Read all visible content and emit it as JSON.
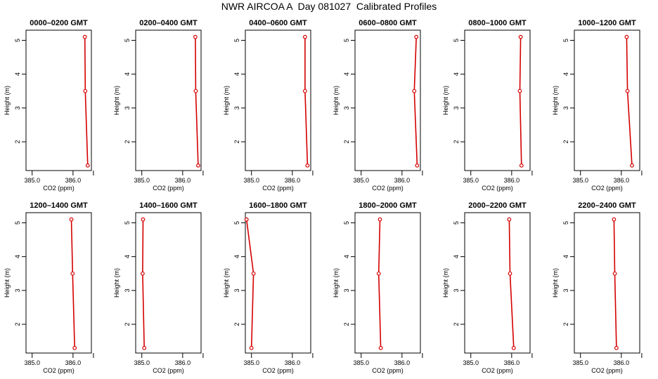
{
  "title": "NWR AIRCOA A  Day 081027  Calibrated Profiles",
  "colors": {
    "line": "#d40000",
    "axis": "#000000"
  },
  "chart_data": [
    {
      "type": "line",
      "title": "0000–0200 GMT",
      "xlabel": "CO2 (ppm)",
      "ylabel": "Height (m)",
      "xlim": [
        384.85,
        386.45
      ],
      "ylim": [
        1.15,
        5.3
      ],
      "xticks": [
        385.0,
        386.0
      ],
      "xtick_labels": [
        "385.0",
        "386.0"
      ],
      "yticks": [
        2,
        3,
        4,
        5
      ],
      "ytick_labels": [
        "2",
        "3",
        "4",
        "5"
      ],
      "grid": false,
      "series": [
        {
          "x": [
            386.36,
            386.3,
            386.29
          ],
          "y": [
            1.3,
            3.5,
            5.1
          ]
        }
      ]
    },
    {
      "type": "line",
      "title": "0200–0400 GMT",
      "xlabel": "CO2 (ppm)",
      "ylabel": "Height (m)",
      "xlim": [
        384.85,
        386.45
      ],
      "ylim": [
        1.15,
        5.3
      ],
      "xticks": [
        385.0,
        386.0
      ],
      "xtick_labels": [
        "385.0",
        "386.0"
      ],
      "yticks": [
        2,
        3,
        4,
        5
      ],
      "ytick_labels": [
        "2",
        "3",
        "4",
        "5"
      ],
      "grid": false,
      "series": [
        {
          "x": [
            386.38,
            386.32,
            386.31
          ],
          "y": [
            1.3,
            3.5,
            5.1
          ]
        }
      ]
    },
    {
      "type": "line",
      "title": "0400–0600 GMT",
      "xlabel": "CO2 (ppm)",
      "ylabel": "Height (m)",
      "xlim": [
        384.85,
        386.45
      ],
      "ylim": [
        1.15,
        5.3
      ],
      "xticks": [
        385.0,
        386.0
      ],
      "xtick_labels": [
        "385.0",
        "386.0"
      ],
      "yticks": [
        2,
        3,
        4,
        5
      ],
      "ytick_labels": [
        "2",
        "3",
        "4",
        "5"
      ],
      "grid": false,
      "series": [
        {
          "x": [
            386.37,
            386.31,
            386.31
          ],
          "y": [
            1.3,
            3.5,
            5.1
          ]
        }
      ]
    },
    {
      "type": "line",
      "title": "0600–0800 GMT",
      "xlabel": "CO2 (ppm)",
      "ylabel": "Height (m)",
      "xlim": [
        384.85,
        386.45
      ],
      "ylim": [
        1.15,
        5.3
      ],
      "xticks": [
        385.0,
        386.0
      ],
      "xtick_labels": [
        "385.0",
        "386.0"
      ],
      "yticks": [
        2,
        3,
        4,
        5
      ],
      "ytick_labels": [
        "2",
        "3",
        "4",
        "5"
      ],
      "grid": false,
      "series": [
        {
          "x": [
            386.37,
            386.3,
            386.35
          ],
          "y": [
            1.3,
            3.5,
            5.1
          ]
        }
      ]
    },
    {
      "type": "line",
      "title": "0800–1000 GMT",
      "xlabel": "CO2 (ppm)",
      "ylabel": "Height (m)",
      "xlim": [
        384.85,
        386.45
      ],
      "ylim": [
        1.15,
        5.3
      ],
      "xticks": [
        385.0,
        386.0
      ],
      "xtick_labels": [
        "385.0",
        "386.0"
      ],
      "yticks": [
        2,
        3,
        4,
        5
      ],
      "ytick_labels": [
        "2",
        "3",
        "4",
        "5"
      ],
      "grid": false,
      "series": [
        {
          "x": [
            386.24,
            386.2,
            386.22
          ],
          "y": [
            1.3,
            3.5,
            5.1
          ]
        }
      ]
    },
    {
      "type": "line",
      "title": "1000–1200 GMT",
      "xlabel": "CO2 (ppm)",
      "ylabel": "Height (m)",
      "xlim": [
        384.85,
        386.45
      ],
      "ylim": [
        1.15,
        5.3
      ],
      "xticks": [
        385.0,
        386.0
      ],
      "xtick_labels": [
        "385.0",
        "386.0"
      ],
      "yticks": [
        2,
        3,
        4,
        5
      ],
      "ytick_labels": [
        "2",
        "3",
        "4",
        "5"
      ],
      "grid": false,
      "series": [
        {
          "x": [
            386.26,
            386.15,
            386.13
          ],
          "y": [
            1.3,
            3.5,
            5.1
          ]
        }
      ]
    },
    {
      "type": "line",
      "title": "1200–1400 GMT",
      "xlabel": "CO2 (ppm)",
      "ylabel": "Height (m)",
      "xlim": [
        384.85,
        386.45
      ],
      "ylim": [
        1.15,
        5.3
      ],
      "xticks": [
        385.0,
        386.0
      ],
      "xtick_labels": [
        "385.0",
        "386.0"
      ],
      "yticks": [
        2,
        3,
        4,
        5
      ],
      "ytick_labels": [
        "2",
        "3",
        "4",
        "5"
      ],
      "grid": false,
      "series": [
        {
          "x": [
            386.04,
            385.99,
            385.96
          ],
          "y": [
            1.3,
            3.5,
            5.1
          ]
        }
      ]
    },
    {
      "type": "line",
      "title": "1400–1600 GMT",
      "xlabel": "CO2 (ppm)",
      "ylabel": "Height (m)",
      "xlim": [
        384.85,
        386.45
      ],
      "ylim": [
        1.15,
        5.3
      ],
      "xticks": [
        385.0,
        386.0
      ],
      "xtick_labels": [
        "385.0",
        "386.0"
      ],
      "yticks": [
        2,
        3,
        4,
        5
      ],
      "ytick_labels": [
        "2",
        "3",
        "4",
        "5"
      ],
      "grid": false,
      "series": [
        {
          "x": [
            385.06,
            385.02,
            385.03
          ],
          "y": [
            1.3,
            3.5,
            5.1
          ]
        }
      ]
    },
    {
      "type": "line",
      "title": "1600–1800 GMT",
      "xlabel": "CO2 (ppm)",
      "ylabel": "Height (m)",
      "xlim": [
        384.85,
        386.45
      ],
      "ylim": [
        1.15,
        5.3
      ],
      "xticks": [
        385.0,
        386.0
      ],
      "xtick_labels": [
        "385.0",
        "386.0"
      ],
      "yticks": [
        2,
        3,
        4,
        5
      ],
      "ytick_labels": [
        "2",
        "3",
        "4",
        "5"
      ],
      "grid": false,
      "series": [
        {
          "x": [
            385.0,
            385.05,
            384.88
          ],
          "y": [
            1.3,
            3.5,
            5.1
          ]
        }
      ]
    },
    {
      "type": "line",
      "title": "1800–2000 GMT",
      "xlabel": "CO2 (ppm)",
      "ylabel": "Height (m)",
      "xlim": [
        384.85,
        386.45
      ],
      "ylim": [
        1.15,
        5.3
      ],
      "xticks": [
        385.0,
        386.0
      ],
      "xtick_labels": [
        "385.0",
        "386.0"
      ],
      "yticks": [
        2,
        3,
        4,
        5
      ],
      "ytick_labels": [
        "2",
        "3",
        "4",
        "5"
      ],
      "grid": false,
      "series": [
        {
          "x": [
            385.48,
            385.43,
            385.46
          ],
          "y": [
            1.3,
            3.5,
            5.1
          ]
        }
      ]
    },
    {
      "type": "line",
      "title": "2000–2200 GMT",
      "xlabel": "CO2 (ppm)",
      "ylabel": "Height (m)",
      "xlim": [
        384.85,
        386.45
      ],
      "ylim": [
        1.15,
        5.3
      ],
      "xticks": [
        385.0,
        386.0
      ],
      "xtick_labels": [
        "385.0",
        "386.0"
      ],
      "yticks": [
        2,
        3,
        4,
        5
      ],
      "ytick_labels": [
        "2",
        "3",
        "4",
        "5"
      ],
      "grid": false,
      "series": [
        {
          "x": [
            386.05,
            385.96,
            385.94
          ],
          "y": [
            1.3,
            3.5,
            5.1
          ]
        }
      ]
    },
    {
      "type": "line",
      "title": "2200–2400 GMT",
      "xlabel": "CO2 (ppm)",
      "ylabel": "Height (m)",
      "xlim": [
        384.85,
        386.45
      ],
      "ylim": [
        1.15,
        5.3
      ],
      "xticks": [
        385.0,
        386.0
      ],
      "xtick_labels": [
        "385.0",
        "386.0"
      ],
      "yticks": [
        2,
        3,
        4,
        5
      ],
      "ytick_labels": [
        "2",
        "3",
        "4",
        "5"
      ],
      "grid": false,
      "series": [
        {
          "x": [
            385.88,
            385.84,
            385.82
          ],
          "y": [
            1.3,
            3.5,
            5.1
          ]
        }
      ]
    }
  ]
}
